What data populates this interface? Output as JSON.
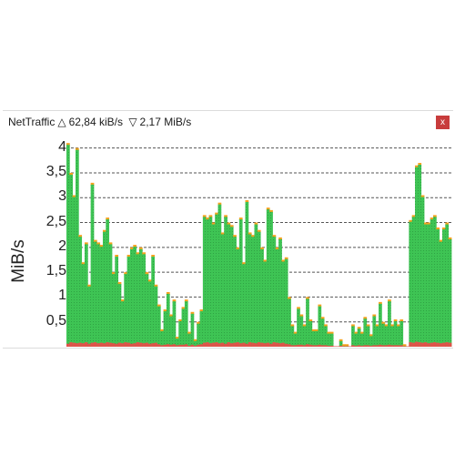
{
  "window": {
    "app_title": "NetTraffic",
    "upload_symbol": "△",
    "upload_rate": "62,84 kiB/s",
    "download_symbol": "▽",
    "download_rate": "2,17 MiB/s",
    "close_label": "x"
  },
  "colors": {
    "download": "#3ec454",
    "download_dots": "#2fa343",
    "upload": "#e0524a",
    "cap": "#f4a21f",
    "grid": "#555555",
    "close": "#c83c3c"
  },
  "chart_data": {
    "type": "bar",
    "ylabel": "MiB/s",
    "ylim": [
      0,
      4.25
    ],
    "yticks": [
      {
        "label": "4",
        "value": 4
      },
      {
        "label": "3,5",
        "value": 3.5
      },
      {
        "label": "3",
        "value": 3
      },
      {
        "label": "2,5",
        "value": 2.5
      },
      {
        "label": "2",
        "value": 2
      },
      {
        "label": "1,5",
        "value": 1.5
      },
      {
        "label": "1",
        "value": 1
      },
      {
        "label": "0,5",
        "value": 0.5
      }
    ],
    "grid": true,
    "series": [
      {
        "name": "download",
        "values": [
          4.1,
          3.5,
          3.05,
          4.0,
          2.25,
          1.7,
          2.1,
          1.25,
          3.3,
          2.15,
          2.1,
          2.05,
          2.35,
          2.6,
          2.1,
          1.5,
          1.85,
          1.3,
          0.95,
          1.5,
          1.85,
          2.0,
          2.05,
          1.9,
          2.0,
          1.9,
          1.5,
          1.35,
          1.85,
          1.25,
          0.85,
          0.35,
          0.75,
          1.1,
          0.65,
          0.95,
          0.2,
          0.55,
          0.8,
          0.95,
          0.3,
          0.7,
          0.15,
          0.5,
          0.75,
          2.65,
          2.6,
          2.65,
          2.5,
          2.7,
          2.9,
          2.3,
          2.65,
          2.5,
          2.45,
          2.25,
          2.0,
          2.6,
          1.7,
          2.95,
          2.3,
          2.25,
          2.5,
          2.35,
          2.0,
          1.75,
          2.8,
          2.75,
          2.25,
          2.0,
          2.2,
          1.75,
          1.8,
          1.0,
          0.45,
          0.3,
          0.8,
          0.65,
          0.45,
          1.0,
          0.55,
          0.35,
          0.35,
          0.85,
          0.6,
          0.45,
          0.3,
          0.3,
          0.0,
          0.0,
          0.15,
          0.05,
          0.05,
          0.0,
          0.45,
          0.3,
          0.4,
          0.3,
          0.6,
          0.45,
          0.25,
          0.65,
          0.45,
          0.9,
          0.5,
          0.45,
          0.95,
          0.45,
          0.55,
          0.45,
          0.55,
          0.05,
          0.0,
          2.55,
          2.65,
          3.65,
          3.7,
          3.05,
          2.5,
          2.5,
          2.6,
          2.65,
          2.4,
          2.15,
          2.4,
          2.5,
          2.2
        ]
      },
      {
        "name": "upload",
        "values": [
          0.06,
          0.09,
          0.08,
          0.07,
          0.08,
          0.07,
          0.09,
          0.06,
          0.08,
          0.09,
          0.07,
          0.08,
          0.07,
          0.09,
          0.08,
          0.07,
          0.06,
          0.08,
          0.07,
          0.09,
          0.08,
          0.06,
          0.07,
          0.09,
          0.08,
          0.07,
          0.08,
          0.06,
          0.07,
          0.08,
          0.05,
          0.03,
          0.04,
          0.05,
          0.04,
          0.05,
          0.03,
          0.04,
          0.04,
          0.05,
          0.02,
          0.04,
          0.02,
          0.04,
          0.05,
          0.08,
          0.09,
          0.07,
          0.08,
          0.09,
          0.07,
          0.08,
          0.06,
          0.09,
          0.07,
          0.08,
          0.09,
          0.07,
          0.08,
          0.06,
          0.09,
          0.08,
          0.07,
          0.09,
          0.08,
          0.07,
          0.08,
          0.06,
          0.09,
          0.08,
          0.07,
          0.08,
          0.06,
          0.05,
          0.03,
          0.03,
          0.04,
          0.04,
          0.03,
          0.05,
          0.04,
          0.03,
          0.03,
          0.04,
          0.03,
          0.03,
          0.02,
          0.02,
          0.01,
          0.01,
          0.02,
          0.01,
          0.01,
          0.01,
          0.03,
          0.02,
          0.03,
          0.02,
          0.03,
          0.03,
          0.02,
          0.03,
          0.03,
          0.04,
          0.03,
          0.03,
          0.04,
          0.03,
          0.03,
          0.03,
          0.03,
          0.01,
          0.01,
          0.09,
          0.08,
          0.1,
          0.09,
          0.08,
          0.09,
          0.07,
          0.08,
          0.09,
          0.08,
          0.07,
          0.08,
          0.09,
          0.08
        ]
      }
    ]
  }
}
